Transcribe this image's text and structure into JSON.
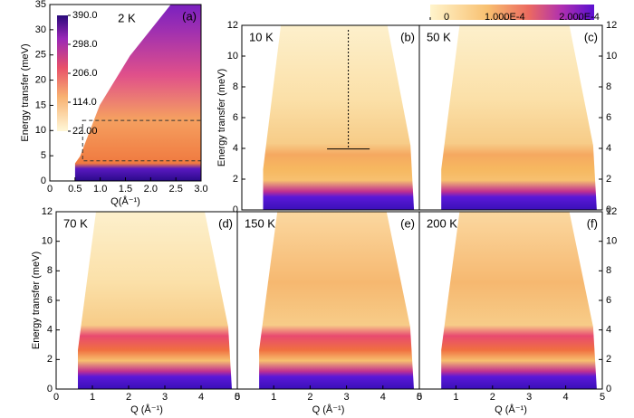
{
  "chart_data": [
    {
      "type": "heatmap",
      "annotation": "2 K",
      "panel_label": "(a)",
      "xlabel": "Q(Å⁻¹)",
      "ylabel": "Energy transfer (meV)",
      "xlim": [
        0,
        3.0
      ],
      "xticks": [
        0,
        0.5,
        {
          "value": 1.0,
          "label": "1.0"
        },
        1.5,
        {
          "value": 2.0,
          "label": "2.0"
        },
        2.5,
        {
          "value": 3.0,
          "label": "3.0"
        }
      ],
      "ylim": [
        0,
        35
      ],
      "yticks": [
        0,
        5,
        10,
        15,
        20,
        25,
        30,
        35
      ],
      "colorbar": {
        "lim": [
          22,
          390
        ],
        "ticks": [
          {
            "value": 390,
            "label": "390.0"
          },
          {
            "value": 298,
            "label": "298.0"
          },
          {
            "value": 206,
            "label": "206.0"
          },
          {
            "value": 114,
            "label": "114.0"
          },
          {
            "value": 22,
            "label": "22.00"
          }
        ]
      }
    },
    {
      "type": "heatmap",
      "annotation": "10 K",
      "panel_label": "(b)",
      "ylabel": "Energy transfer (meV)",
      "ylim": [
        0,
        12
      ],
      "yticks": [
        0,
        2,
        4,
        6,
        8,
        10,
        12
      ]
    },
    {
      "type": "heatmap",
      "annotation": "50 K",
      "panel_label": "(c)",
      "ylim": [
        0,
        12
      ],
      "yticks": [
        0,
        2,
        4,
        6,
        8,
        10,
        12
      ]
    },
    {
      "type": "heatmap",
      "annotation": "70 K",
      "panel_label": "(d)",
      "xlabel": "Q (Å⁻¹)",
      "ylabel": "Energy transfer (meV)",
      "xlim": [
        0,
        5
      ],
      "xticks": [
        0,
        1,
        2,
        3,
        4,
        5
      ],
      "ylim": [
        0,
        12
      ],
      "yticks": [
        0,
        2,
        4,
        6,
        8,
        10,
        12
      ]
    },
    {
      "type": "heatmap",
      "annotation": "150 K",
      "panel_label": "(e)",
      "xlabel": "Q (Å⁻¹)",
      "xlim": [
        0,
        5
      ],
      "xticks": [
        0,
        1,
        2,
        3,
        4,
        5
      ]
    },
    {
      "type": "heatmap",
      "annotation": "200 K",
      "panel_label": "(f)",
      "xlabel": "Q (Å⁻¹)",
      "xlim": [
        0,
        5
      ],
      "xticks": [
        0,
        1,
        2,
        3,
        4,
        5
      ],
      "ylim": [
        0,
        12
      ],
      "yticks": [
        0,
        2,
        4,
        6,
        8,
        10,
        12
      ]
    },
    {
      "type": "colorbar",
      "lim": [
        0,
        0.00022
      ],
      "ticks": [
        0,
        {
          "value": 0.0001,
          "label": "1.000E-4"
        },
        {
          "value": 0.0002,
          "label": "2.000E-4"
        }
      ]
    }
  ]
}
